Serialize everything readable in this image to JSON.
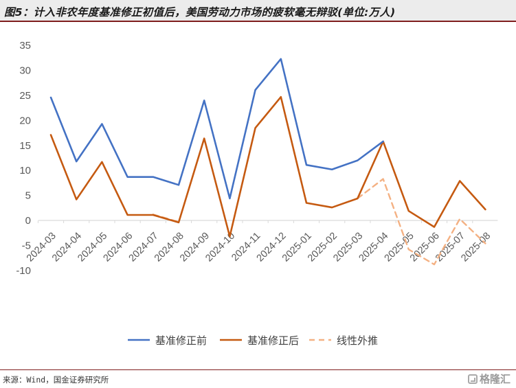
{
  "title": "图5：计入非农年度基准修正初值后，美国劳动力市场的疲软毫无辩驳(单位:万人)",
  "source": "来源：Wind，国金证券研究所",
  "watermark": "格隆汇",
  "colors": {
    "series_before": "#4472c4",
    "series_after": "#c55a11",
    "series_extrapolated": "#f4b183",
    "header_bg": "#ececec",
    "rule": "#7f1d1d"
  },
  "chart_data": {
    "type": "line",
    "title": "",
    "xlabel": "",
    "ylabel": "",
    "ylim": [
      -10,
      35
    ],
    "yticks": [
      -10,
      -5,
      0,
      5,
      10,
      15,
      20,
      25,
      30,
      35
    ],
    "grid": false,
    "legend_position": "bottom",
    "categories": [
      "2024-03",
      "2024-04",
      "2024-05",
      "2024-06",
      "2024-07",
      "2024-08",
      "2024-09",
      "2024-10",
      "2024-11",
      "2024-12",
      "2025-01",
      "2025-02",
      "2025-03",
      "2025-04",
      "2025-05",
      "2025-06",
      "2025-07",
      "2025-08"
    ],
    "series": [
      {
        "name": "基准修正前",
        "style": "solid",
        "values": [
          24.6,
          11.8,
          19.3,
          8.7,
          8.7,
          7.1,
          24.0,
          4.4,
          26.1,
          32.3,
          11.1,
          10.2,
          12.0,
          15.8,
          null,
          null,
          null,
          null
        ]
      },
      {
        "name": "基准修正后",
        "style": "solid",
        "values": [
          17.1,
          4.2,
          11.7,
          1.1,
          1.1,
          -0.4,
          16.4,
          -3.2,
          18.5,
          24.7,
          3.5,
          2.6,
          4.4,
          15.8,
          1.9,
          -1.3,
          7.9,
          2.2
        ]
      },
      {
        "name": "线性外推",
        "style": "dashed",
        "values": [
          null,
          null,
          null,
          null,
          1.2,
          -0.3,
          null,
          null,
          null,
          null,
          null,
          null,
          4.4,
          8.3,
          -5.8,
          -8.8,
          0.3,
          -4.6
        ]
      }
    ]
  }
}
